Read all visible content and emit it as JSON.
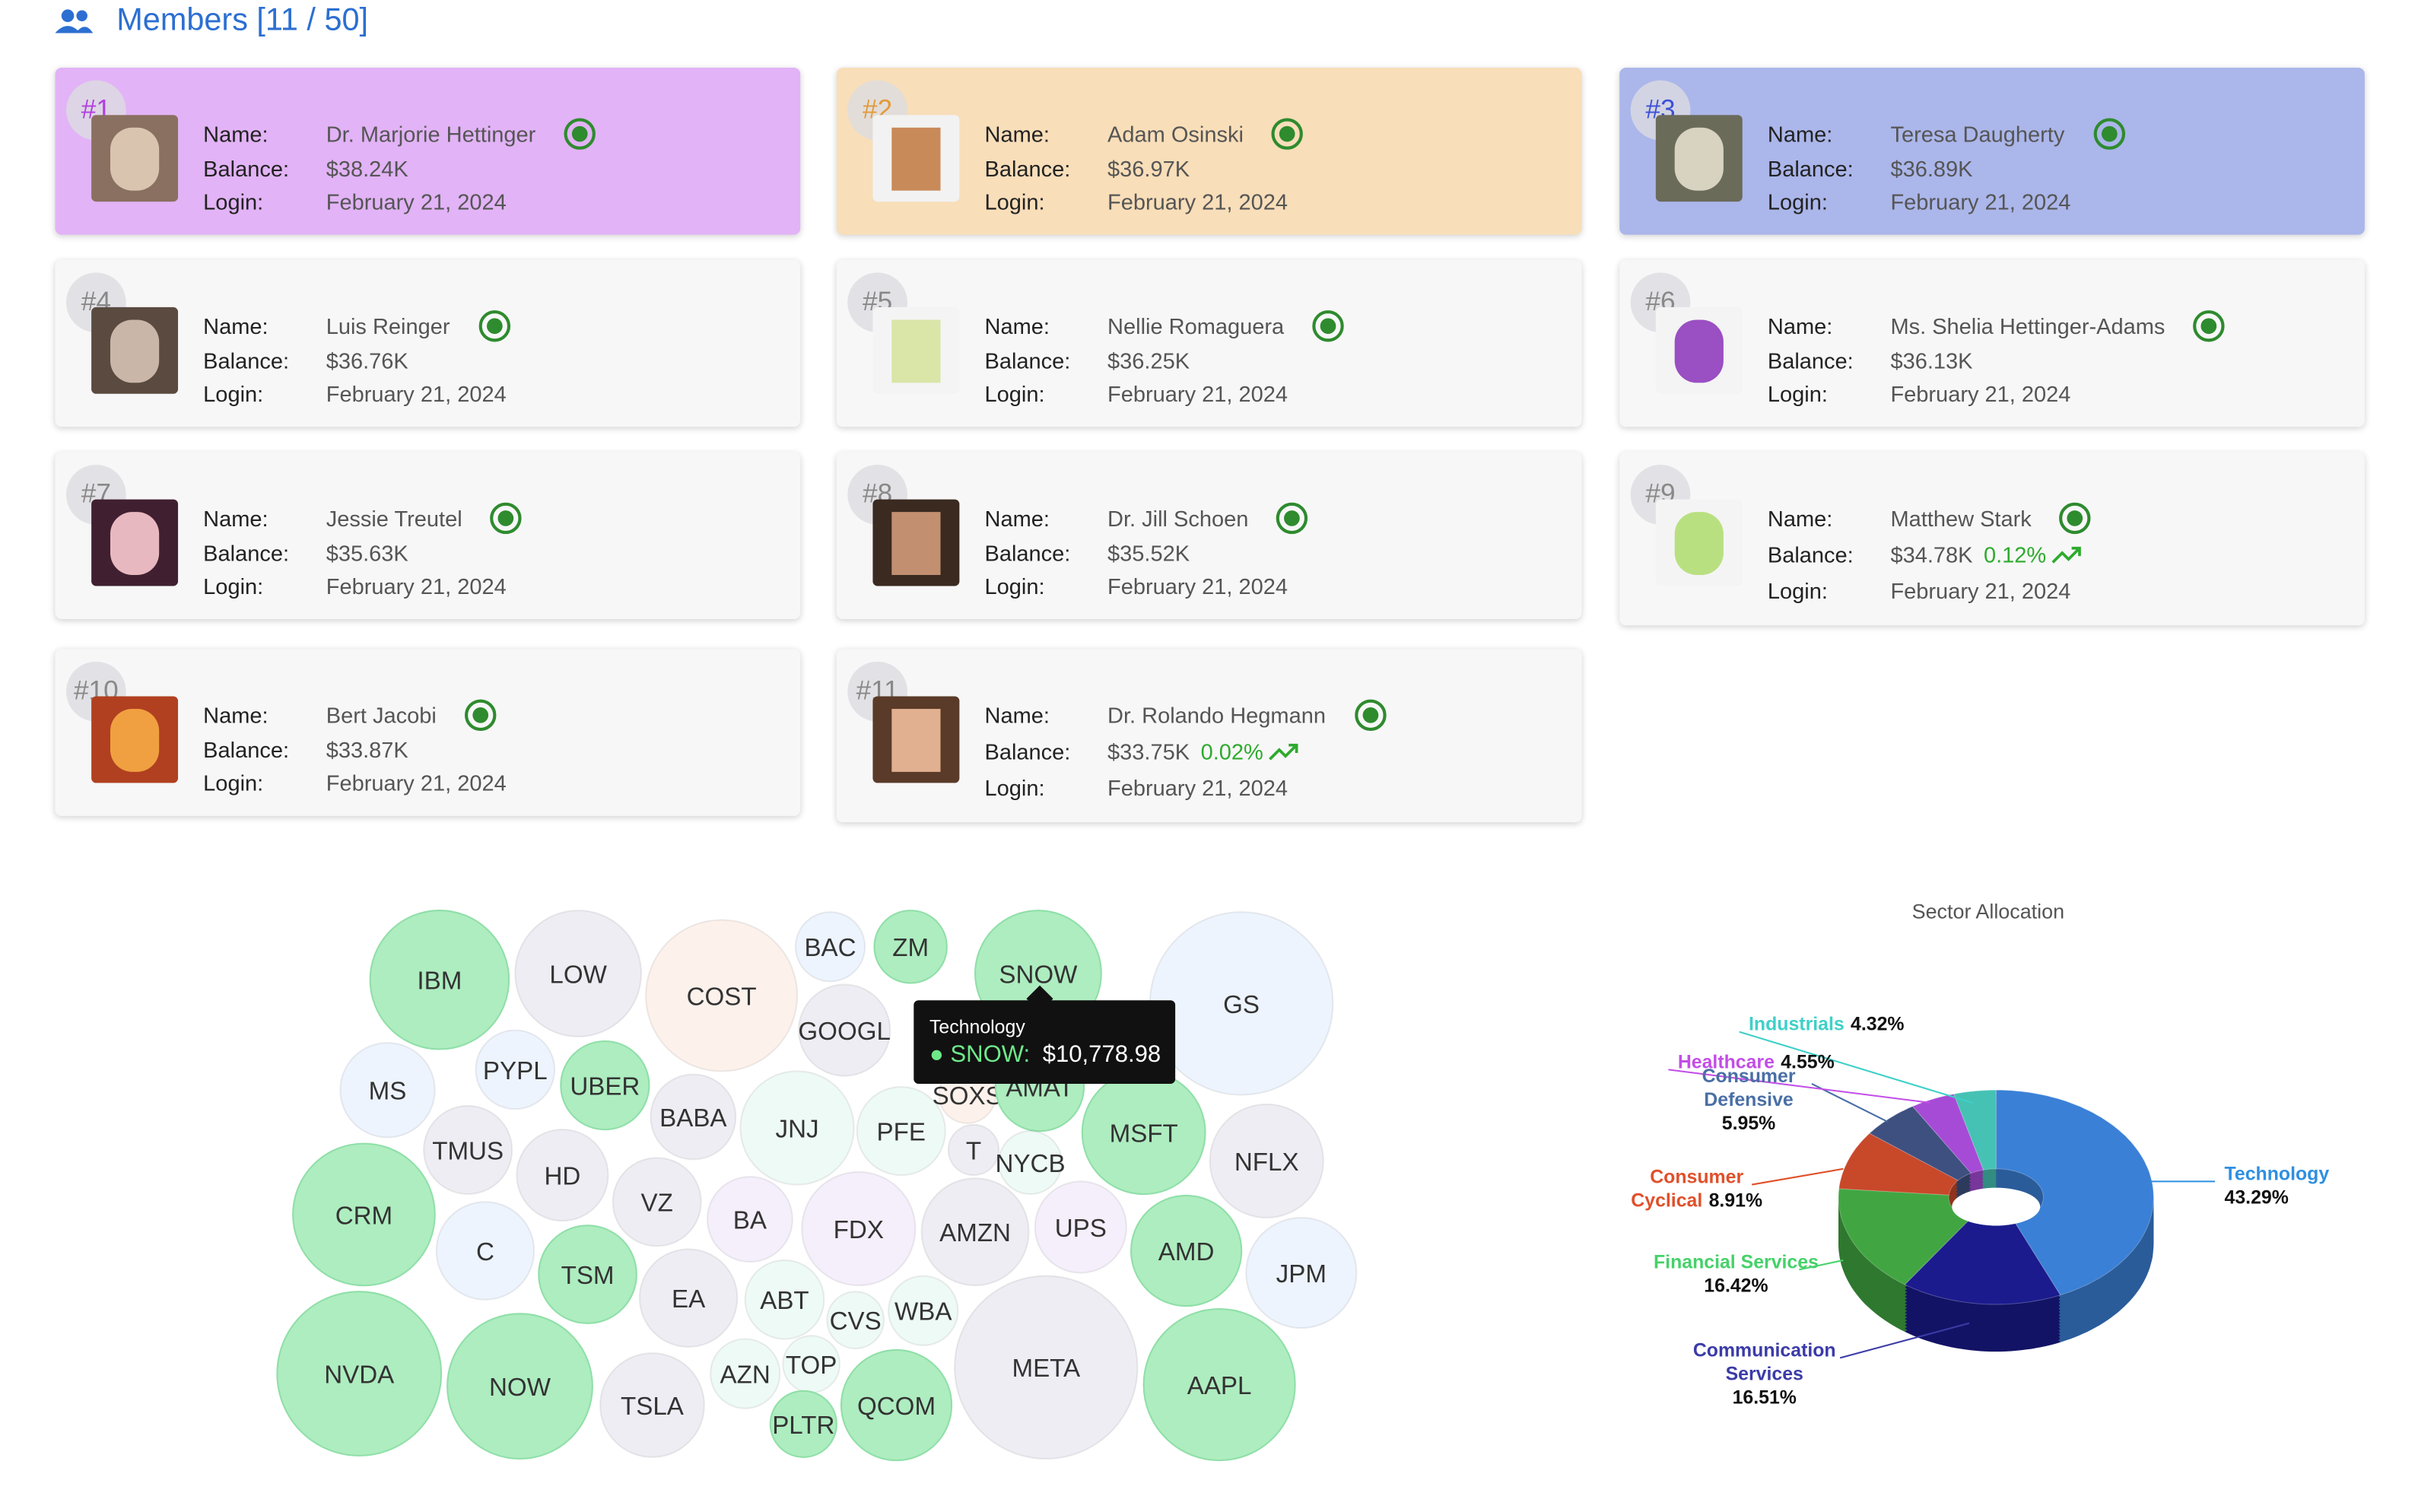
{
  "header": {
    "title": "Members [11 / 50]"
  },
  "field_labels": {
    "name": "Name:",
    "balance": "Balance:",
    "login": "Login:"
  },
  "members": [
    {
      "rank": "#1",
      "name": "Dr. Marjorie Hettinger",
      "balance": "$38.24K",
      "login": "February 21, 2024"
    },
    {
      "rank": "#2",
      "name": "Adam Osinski",
      "balance": "$36.97K",
      "login": "February 21, 2024"
    },
    {
      "rank": "#3",
      "name": "Teresa Daugherty",
      "balance": "$36.89K",
      "login": "February 21, 2024"
    },
    {
      "rank": "#4",
      "name": "Luis Reinger",
      "balance": "$36.76K",
      "login": "February 21, 2024"
    },
    {
      "rank": "#5",
      "name": "Nellie Romaguera",
      "balance": "$36.25K",
      "login": "February 21, 2024"
    },
    {
      "rank": "#6",
      "name": "Ms. Shelia Hettinger-Adams",
      "balance": "$36.13K",
      "login": "February 21, 2024"
    },
    {
      "rank": "#7",
      "name": "Jessie Treutel",
      "balance": "$35.63K",
      "login": "February 21, 2024"
    },
    {
      "rank": "#8",
      "name": "Dr. Jill Schoen",
      "balance": "$35.52K",
      "login": "February 21, 2024"
    },
    {
      "rank": "#9",
      "name": "Matthew Stark",
      "balance": "$34.78K",
      "change": "0.12%",
      "login": "February 21, 2024"
    },
    {
      "rank": "#10",
      "name": "Bert Jacobi",
      "balance": "$33.87K",
      "login": "February 21, 2024"
    },
    {
      "rank": "#11",
      "name": "Dr. Rolando Hegmann",
      "balance": "$33.75K",
      "change": "0.02%",
      "login": "February 21, 2024"
    }
  ],
  "chart_data": [
    {
      "type": "bubble",
      "categories": [
        "IBM",
        "LOW",
        "COST",
        "BAC",
        "ZM",
        "SNOW",
        "GS",
        "GOOGL",
        "MS",
        "PYPL",
        "UBER",
        "BABA",
        "JNJ",
        "PFE",
        "SOXS",
        "AMAT",
        "T",
        "NYCB",
        "MSFT",
        "NFLX",
        "TMUS",
        "HD",
        "VZ",
        "BA",
        "FDX",
        "AMZN",
        "UPS",
        "AMD",
        "JPM",
        "CRM",
        "C",
        "TSM",
        "EA",
        "ABT",
        "CVS",
        "WBA",
        "NVDA",
        "NOW",
        "TSLA",
        "AZN",
        "TOP",
        "PLTR",
        "QCOM",
        "META",
        "AAPL"
      ],
      "values": [
        13068,
        10800,
        15552,
        3267,
        3571,
        10778.98,
        22707,
        5677,
        6075,
        4219,
        5292,
        4921,
        8748,
        5292,
        2187,
        5292,
        1728,
        2700,
        10267,
        8748,
        5292,
        5677,
        5292,
        4921,
        8748,
        7803,
        5677,
        8269,
        8269,
        13669,
        6487,
        6487,
        6487,
        4219,
        2187,
        3267,
        18252,
        14283,
        7351,
        3267,
        2187,
        2977,
        8269,
        22707,
        15552
      ],
      "colors": [
        "#aeedc0",
        "#eeedf4",
        "#fdf1eb",
        "#edf4fe",
        "#aeedc0",
        "#aeedc0",
        "#edf4fe",
        "#eeedf4",
        "#edf4fe",
        "#edf4fe",
        "#aeedc0",
        "#eeedf4",
        "#eefaf5",
        "#eefaf5",
        "#fdf1eb",
        "#aeedc0",
        "#eeedf4",
        "#eefaf5",
        "#aeedc0",
        "#eeedf4",
        "#eeedf4",
        "#eeedf4",
        "#eeedf4",
        "#f5eefb",
        "#f5eefb",
        "#eeedf4",
        "#f5eefb",
        "#aeedc0",
        "#edf4fe",
        "#aeedc0",
        "#edf4fe",
        "#aeedc0",
        "#eeedf4",
        "#eefaf5",
        "#eefaf5",
        "#eefaf5",
        "#aeedc0",
        "#aeedc0",
        "#eeedf4",
        "#eefaf5",
        "#eefaf5",
        "#aeedc0",
        "#aeedc0",
        "#eeedf4",
        "#aeedc0"
      ],
      "tooltip": {
        "title": "Technology",
        "label": "SNOW:",
        "value": "$10,778.98"
      }
    },
    {
      "type": "pie",
      "title": "Sector Allocation",
      "categories": [
        "Technology",
        "Communication Services",
        "Financial Services",
        "Consumer Cyclical",
        "Consumer Defensive",
        "Healthcare",
        "Industrials"
      ],
      "values": [
        43.29,
        16.51,
        16.42,
        8.91,
        5.95,
        4.55,
        4.32
      ],
      "value_labels": [
        "43.29%",
        "16.51%",
        "16.42%",
        "8.91%",
        "5.95%",
        "4.55%",
        "4.32%"
      ],
      "colors": [
        "#3a80d6",
        "#1b1b8e",
        "#41a641",
        "#c8482a",
        "#3e5080",
        "#a64bd6",
        "#45c2b4"
      ],
      "label_colors": [
        "#2f8fe0",
        "#3b3ba8",
        "#46d16a",
        "#e0502a",
        "#4a6fa5",
        "#c34ee6",
        "#3fd0c8"
      ]
    }
  ]
}
